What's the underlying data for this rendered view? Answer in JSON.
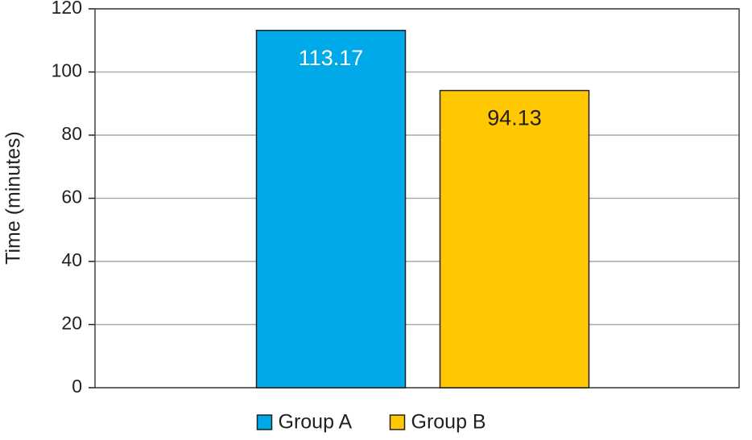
{
  "chart_data": {
    "type": "bar",
    "y_label": "Time (minutes)",
    "categories": [
      null
    ],
    "series": [
      {
        "name": "Group A",
        "color": "#00a9e8",
        "values": [
          113.17
        ]
      },
      {
        "name": "Group B",
        "color": "#ffc800",
        "values": [
          94.13
        ]
      }
    ],
    "ylim": [
      0,
      120
    ],
    "yticks": [
      0,
      20,
      40,
      60,
      80,
      100,
      120
    ],
    "grid": true,
    "legend": "bottom"
  }
}
